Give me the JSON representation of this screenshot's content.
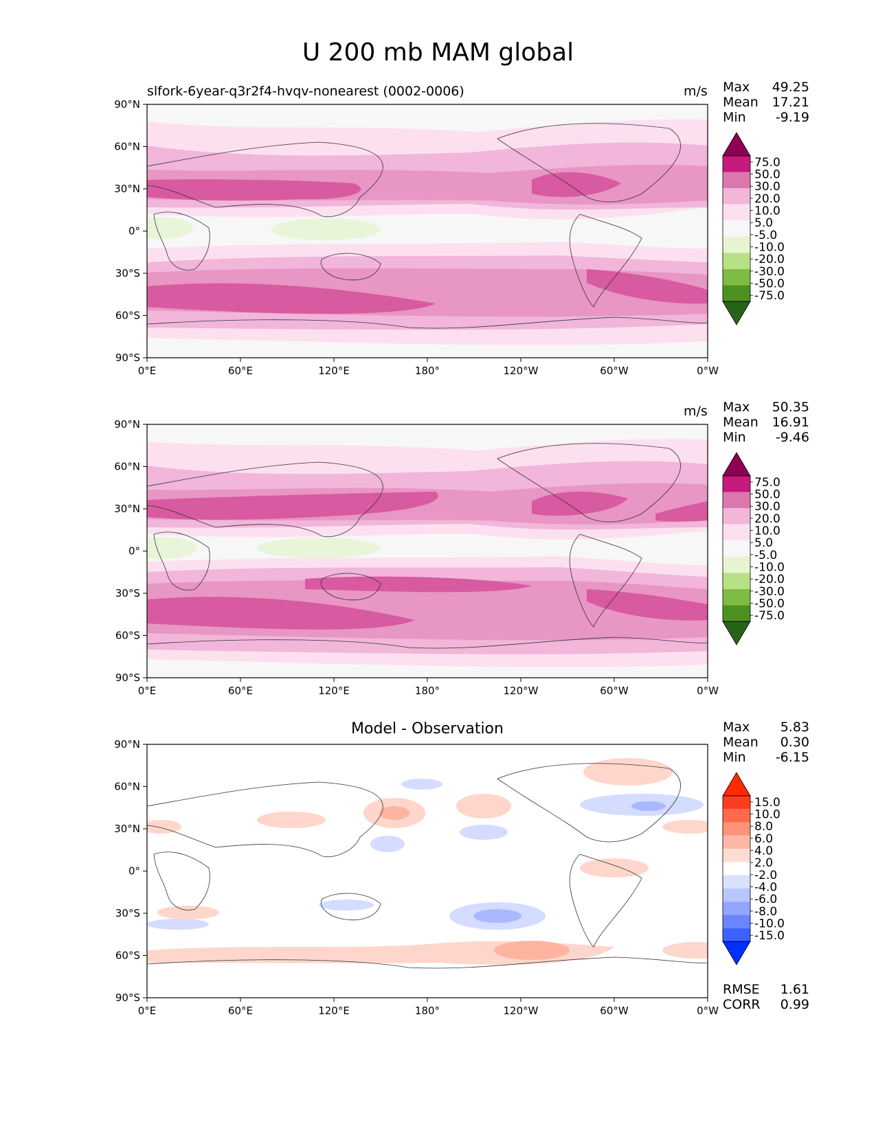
{
  "title": "U 200 mb MAM global",
  "axes": {
    "y_ticks": [
      "90°N",
      "60°N",
      "30°N",
      "0°",
      "30°S",
      "60°S",
      "90°S"
    ],
    "x_ticks": [
      "0°E",
      "60°E",
      "120°E",
      "180°",
      "120°W",
      "60°W",
      "0°W"
    ]
  },
  "stat_labels": {
    "max": "Max",
    "mean": "Mean",
    "min": "Min",
    "rmse": "RMSE",
    "corr": "CORR"
  },
  "colors": {
    "wind_levels": [
      "#276419",
      "#4d9221",
      "#7fbc41",
      "#b8e186",
      "#e6f5d0",
      "#f7f7f7",
      "#fde0ef",
      "#f1b6da",
      "#de77ae",
      "#c51b7d",
      "#8e0152"
    ],
    "diff_levels": [
      "#0030ff",
      "#3d62ff",
      "#6b85ff",
      "#93a6ff",
      "#b8c5ff",
      "#dae1ff",
      "#ffffff",
      "#ffdcd2",
      "#ffb8a6",
      "#ff937a",
      "#ff6a4d",
      "#ff3c1e",
      "#ff2a00"
    ],
    "wind_fills": [
      "#e9f5d9",
      "#f7f7f7",
      "#fde0ef",
      "#f1b6da",
      "#e896c3",
      "#d85aa0"
    ],
    "diff_fills": [
      "#ffd6cc",
      "#ffb4a0",
      "#d4dcff",
      "#aab8ff"
    ]
  },
  "chart_data": [
    {
      "type": "contour-map",
      "panel": "test",
      "subtitle": "slfork-6year-q3r2f4-hvqv-nonearest (0002-0006)",
      "units": "m/s",
      "stats": {
        "max": "49.25",
        "mean": "17.21",
        "min": "-9.19"
      },
      "colorbar_levels": [
        "75.0",
        "50.0",
        "30.0",
        "20.0",
        "10.0",
        "5.0",
        "-5.0",
        "-10.0",
        "-20.0",
        "-30.0",
        "-50.0",
        "-75.0"
      ],
      "xlim": [
        0,
        360
      ],
      "ylim": [
        -90,
        90
      ]
    },
    {
      "type": "contour-map",
      "panel": "reference",
      "subtitle": "",
      "units": "m/s",
      "stats": {
        "max": "50.35",
        "mean": "16.91",
        "min": "-9.46"
      },
      "colorbar_levels": [
        "75.0",
        "50.0",
        "30.0",
        "20.0",
        "10.0",
        "5.0",
        "-5.0",
        "-10.0",
        "-20.0",
        "-30.0",
        "-50.0",
        "-75.0"
      ],
      "xlim": [
        0,
        360
      ],
      "ylim": [
        -90,
        90
      ]
    },
    {
      "type": "contour-map",
      "panel": "difference",
      "subtitle": "Model - Observation",
      "units": "",
      "stats": {
        "max": "5.83",
        "mean": "0.30",
        "min": "-6.15",
        "rmse": "1.61",
        "corr": "0.99"
      },
      "colorbar_levels": [
        "15.0",
        "10.0",
        "8.0",
        "6.0",
        "4.0",
        "2.0",
        "-2.0",
        "-4.0",
        "-6.0",
        "-8.0",
        "-10.0",
        "-15.0"
      ],
      "xlim": [
        0,
        360
      ],
      "ylim": [
        -90,
        90
      ]
    }
  ]
}
